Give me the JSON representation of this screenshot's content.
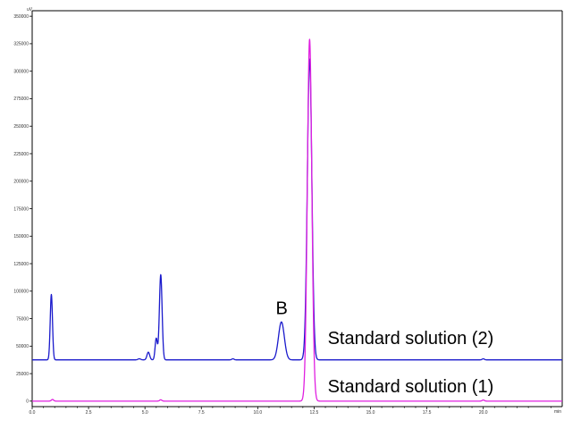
{
  "chart_data": {
    "type": "line",
    "title": "",
    "xlabel": "",
    "ylabel": "",
    "y_unit": "uV",
    "x_unit": "min",
    "xlim": [
      0,
      23.5
    ],
    "ylim": [
      -5000,
      355000
    ],
    "x_ticks": [
      "0.0",
      "2.5",
      "5.0",
      "7.5",
      "10.0",
      "12.5",
      "15.0",
      "17.5",
      "20.0"
    ],
    "y_ticks": [
      "0",
      "25000",
      "50000",
      "75000",
      "100000",
      "125000",
      "150000",
      "175000",
      "200000",
      "225000",
      "250000",
      "275000",
      "300000",
      "325000",
      "350000"
    ],
    "grid": false,
    "series": [
      {
        "name": "Standard solution (2)",
        "color": "#1a1acc",
        "baseline": 37500,
        "peaks": [
          {
            "x": 0.85,
            "y": 97000,
            "w": 0.05
          },
          {
            "x": 4.75,
            "y": 38500,
            "w": 0.06
          },
          {
            "x": 5.15,
            "y": 44500,
            "w": 0.06
          },
          {
            "x": 5.5,
            "y": 57000,
            "w": 0.05
          },
          {
            "x": 5.7,
            "y": 115000,
            "w": 0.06
          },
          {
            "x": 8.9,
            "y": 38500,
            "w": 0.05
          },
          {
            "x": 11.05,
            "y": 72000,
            "w": 0.13
          },
          {
            "x": 12.3,
            "y": 311000,
            "w": 0.1
          },
          {
            "x": 20.0,
            "y": 38500,
            "w": 0.05
          }
        ]
      },
      {
        "name": "Standard solution (1)",
        "color": "#e020e0",
        "baseline": 0,
        "peaks": [
          {
            "x": 0.9,
            "y": 1500,
            "w": 0.05
          },
          {
            "x": 5.7,
            "y": 1200,
            "w": 0.05
          },
          {
            "x": 12.3,
            "y": 329000,
            "w": 0.1
          },
          {
            "x": 20.0,
            "y": 1000,
            "w": 0.05
          }
        ]
      }
    ],
    "annotations": [
      {
        "text": "B",
        "x": 10.8,
        "y": 79000
      },
      {
        "text": "Standard solution (2)",
        "x": 13.1,
        "y": 52000
      },
      {
        "text": "Standard solution (1)",
        "x": 13.1,
        "y": 8000
      }
    ]
  }
}
